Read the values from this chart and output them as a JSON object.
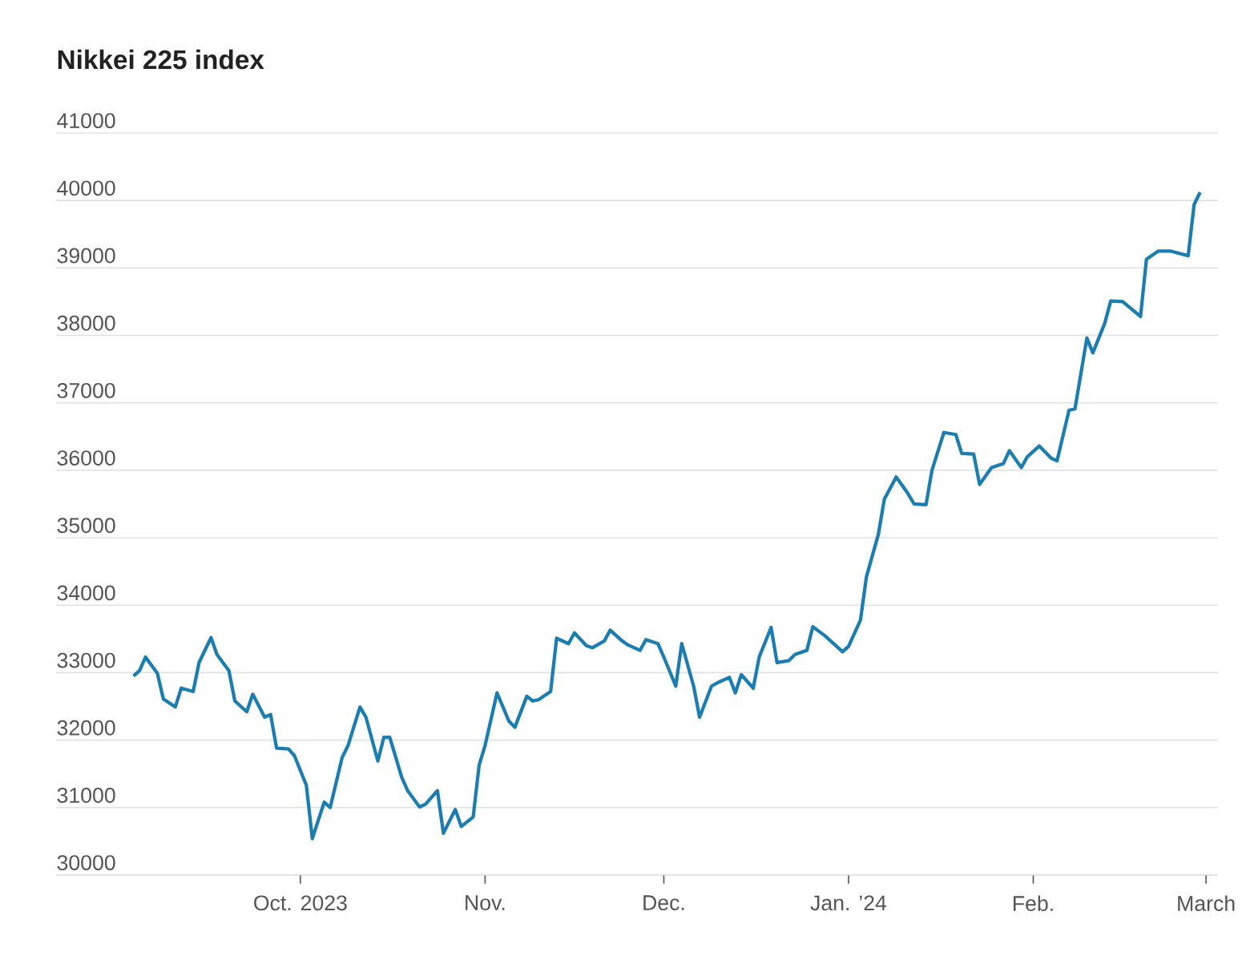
{
  "chart_data": {
    "type": "line",
    "title": "Nikkei 225 index",
    "x": [
      "2023-09-03",
      "2023-09-04",
      "2023-09-05",
      "2023-09-07",
      "2023-09-08",
      "2023-09-10",
      "2023-09-11",
      "2023-09-13",
      "2023-09-14",
      "2023-09-16",
      "2023-09-17",
      "2023-09-19",
      "2023-09-20",
      "2023-09-22",
      "2023-09-23",
      "2023-09-25",
      "2023-09-26",
      "2023-09-27",
      "2023-09-29",
      "2023-09-30",
      "2023-10-02",
      "2023-10-03",
      "2023-10-05",
      "2023-10-06",
      "2023-10-08",
      "2023-10-09",
      "2023-10-11",
      "2023-10-12",
      "2023-10-14",
      "2023-10-15",
      "2023-10-16",
      "2023-10-18",
      "2023-10-19",
      "2023-10-21",
      "2023-10-22",
      "2023-10-24",
      "2023-10-25",
      "2023-10-27",
      "2023-10-28",
      "2023-10-30",
      "2023-10-31",
      "2023-11-01",
      "2023-11-03",
      "2023-11-05",
      "2023-11-06",
      "2023-11-08",
      "2023-11-09",
      "2023-11-10",
      "2023-11-12",
      "2023-11-13",
      "2023-11-15",
      "2023-11-16",
      "2023-11-18",
      "2023-11-19",
      "2023-11-21",
      "2023-11-22",
      "2023-11-24",
      "2023-11-25",
      "2023-11-27",
      "2023-11-28",
      "2023-11-30",
      "2023-12-01",
      "2023-12-03",
      "2023-12-04",
      "2023-12-06",
      "2023-12-07",
      "2023-12-09",
      "2023-12-10",
      "2023-12-12",
      "2023-12-13",
      "2023-12-14",
      "2023-12-16",
      "2023-12-17",
      "2023-12-19",
      "2023-12-20",
      "2023-12-22",
      "2023-12-23",
      "2023-12-25",
      "2023-12-26",
      "2023-12-28",
      "2023-12-29",
      "2023-12-31",
      "2024-01-01",
      "2024-01-03",
      "2024-01-04",
      "2024-01-06",
      "2024-01-07",
      "2024-01-09",
      "2024-01-11",
      "2024-01-12",
      "2024-01-14",
      "2024-01-15",
      "2024-01-17",
      "2024-01-19",
      "2024-01-20",
      "2024-01-22",
      "2024-01-23",
      "2024-01-25",
      "2024-01-27",
      "2024-01-28",
      "2024-01-30",
      "2024-01-31",
      "2024-02-02",
      "2024-02-04",
      "2024-02-05",
      "2024-02-07",
      "2024-02-08",
      "2024-02-10",
      "2024-02-11",
      "2024-02-13",
      "2024-02-14",
      "2024-02-16",
      "2024-02-19",
      "2024-02-20",
      "2024-02-22",
      "2024-02-24",
      "2024-02-27",
      "2024-02-28",
      "2024-02-29"
    ],
    "series": [
      {
        "color": "#1b7db0",
        "values": [
          32950,
          33030,
          33230,
          32990,
          32610,
          32490,
          32770,
          32720,
          33150,
          33520,
          33270,
          33030,
          32580,
          32420,
          32680,
          32340,
          32380,
          31880,
          31870,
          31770,
          31330,
          30540,
          31080,
          31000,
          31740,
          31920,
          32490,
          32340,
          31690,
          32040,
          32040,
          31450,
          31250,
          31010,
          31050,
          31250,
          30620,
          30970,
          30720,
          30860,
          31630,
          31920,
          32700,
          32280,
          32190,
          32650,
          32580,
          32600,
          32720,
          33510,
          33430,
          33590,
          33400,
          33370,
          33470,
          33630,
          33470,
          33410,
          33330,
          33490,
          33430,
          33230,
          32800,
          33430,
          32800,
          32340,
          32800,
          32850,
          32930,
          32700,
          32970,
          32770,
          33230,
          33670,
          33150,
          33180,
          33270,
          33330,
          33680,
          33550,
          33470,
          33310,
          33390,
          33780,
          34420,
          35050,
          35570,
          35900,
          35650,
          35500,
          35490,
          36000,
          36560,
          36530,
          36250,
          36240,
          35790,
          36040,
          36100,
          36290,
          36040,
          36200,
          36360,
          36180,
          36140,
          36890,
          36910,
          37960,
          37740,
          38180,
          38510,
          38500,
          38280,
          39130,
          39250,
          39250,
          39180,
          39940,
          40120
        ]
      }
    ],
    "xlim": [
      "2023-08-21",
      "2024-03-03"
    ],
    "xticks": [
      {
        "value": "2023-10-01",
        "label": "Oct. 2023"
      },
      {
        "value": "2023-11-01",
        "label": "Nov."
      },
      {
        "value": "2023-12-01",
        "label": "Dec."
      },
      {
        "value": "2024-01-01",
        "label": "Jan. ’24"
      },
      {
        "value": "2024-02-01",
        "label": "Feb."
      },
      {
        "value": "2024-03-01",
        "label": "March"
      }
    ],
    "ylim": [
      30000,
      41000
    ],
    "yticks": [
      30000,
      31000,
      32000,
      33000,
      34000,
      35000,
      36000,
      37000,
      38000,
      39000,
      40000,
      41000
    ],
    "grid": "y"
  }
}
